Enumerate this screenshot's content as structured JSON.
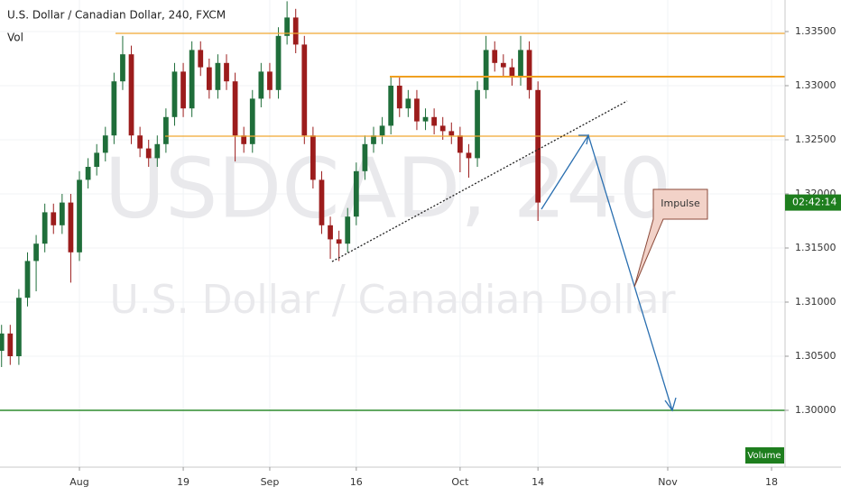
{
  "chart_data": {
    "type": "candlestick",
    "title": "U.S. Dollar / Canadian Dollar, 240, FXCM",
    "subtitle": "Vol",
    "watermark": "USDCAD, 240",
    "watermark_subtitle": "U.S. Dollar / Canadian Dollar",
    "annotation": "Impulse",
    "countdown": "02:42:14",
    "volume_button": "Volume",
    "up_color": "#1f6e3a",
    "down_color": "#9c1c1c",
    "xlim": [
      -0.18,
      90.56
    ],
    "xticks": [
      {
        "value": 9,
        "label": "Aug"
      },
      {
        "value": 21,
        "label": "19"
      },
      {
        "value": 31,
        "label": "Sep"
      },
      {
        "value": 41,
        "label": "16"
      },
      {
        "value": 53,
        "label": "Oct"
      },
      {
        "value": 62,
        "label": "14"
      },
      {
        "value": 77,
        "label": "Nov"
      },
      {
        "value": 89,
        "label": "18"
      }
    ],
    "ylim": [
      1.29475,
      1.337917
    ],
    "yticks": [
      {
        "value": 1.3,
        "label": "1.30000"
      },
      {
        "value": 1.305,
        "label": "1.30500"
      },
      {
        "value": 1.31,
        "label": "1.31000"
      },
      {
        "value": 1.315,
        "label": "1.31500"
      },
      {
        "value": 1.32,
        "label": "1.32000"
      },
      {
        "value": 1.325,
        "label": "1.32500"
      },
      {
        "value": 1.33,
        "label": "1.33000"
      },
      {
        "value": 1.335,
        "label": "1.33500"
      }
    ],
    "grid": true,
    "ohlc": [
      [
        1.3055,
        1.3079,
        1.304,
        1.3071
      ],
      [
        1.3071,
        1.3079,
        1.3042,
        1.305
      ],
      [
        1.305,
        1.3112,
        1.3042,
        1.3104
      ],
      [
        1.3104,
        1.3146,
        1.3096,
        1.3138
      ],
      [
        1.3138,
        1.3162,
        1.311,
        1.3154
      ],
      [
        1.3154,
        1.3191,
        1.3146,
        1.3183
      ],
      [
        1.3183,
        1.3191,
        1.3163,
        1.3171
      ],
      [
        1.3171,
        1.32,
        1.3163,
        1.3192
      ],
      [
        1.3192,
        1.32,
        1.3118,
        1.3146
      ],
      [
        1.3146,
        1.3221,
        1.3138,
        1.3213
      ],
      [
        1.3213,
        1.3233,
        1.3205,
        1.3225
      ],
      [
        1.3225,
        1.3246,
        1.3217,
        1.3238
      ],
      [
        1.3238,
        1.3262,
        1.323,
        1.3254
      ],
      [
        1.3254,
        1.3312,
        1.3246,
        1.3304
      ],
      [
        1.3304,
        1.3346,
        1.3296,
        1.3329
      ],
      [
        1.3329,
        1.3337,
        1.3246,
        1.3254
      ],
      [
        1.3254,
        1.3262,
        1.3234,
        1.3242
      ],
      [
        1.3242,
        1.325,
        1.3225,
        1.3233
      ],
      [
        1.3233,
        1.3254,
        1.3225,
        1.3246
      ],
      [
        1.3246,
        1.3279,
        1.3238,
        1.3271
      ],
      [
        1.3271,
        1.3321,
        1.3263,
        1.3313
      ],
      [
        1.3313,
        1.3321,
        1.3271,
        1.3279
      ],
      [
        1.3279,
        1.3341,
        1.3271,
        1.3333
      ],
      [
        1.3333,
        1.3341,
        1.3309,
        1.3317
      ],
      [
        1.3317,
        1.3325,
        1.3288,
        1.3296
      ],
      [
        1.3296,
        1.3329,
        1.3288,
        1.3321
      ],
      [
        1.3321,
        1.3329,
        1.3296,
        1.3304
      ],
      [
        1.3304,
        1.3312,
        1.323,
        1.3254
      ],
      [
        1.3254,
        1.3262,
        1.3238,
        1.3246
      ],
      [
        1.3246,
        1.3296,
        1.3238,
        1.3288
      ],
      [
        1.3288,
        1.3321,
        1.328,
        1.3313
      ],
      [
        1.3313,
        1.3321,
        1.3288,
        1.3296
      ],
      [
        1.3296,
        1.3354,
        1.3288,
        1.3346
      ],
      [
        1.3346,
        1.3378,
        1.3338,
        1.3363
      ],
      [
        1.3363,
        1.3371,
        1.333,
        1.3338
      ],
      [
        1.3338,
        1.3346,
        1.3246,
        1.3254
      ],
      [
        1.3254,
        1.3262,
        1.3205,
        1.3213
      ],
      [
        1.3213,
        1.3221,
        1.3163,
        1.3171
      ],
      [
        1.3171,
        1.3179,
        1.314,
        1.3158
      ],
      [
        1.3158,
        1.3166,
        1.3138,
        1.3154
      ],
      [
        1.3154,
        1.3187,
        1.3146,
        1.3179
      ],
      [
        1.3179,
        1.3229,
        1.3171,
        1.3221
      ],
      [
        1.3221,
        1.3254,
        1.3213,
        1.3246
      ],
      [
        1.3246,
        1.3262,
        1.3238,
        1.3254
      ],
      [
        1.3254,
        1.3271,
        1.3246,
        1.3263
      ],
      [
        1.3263,
        1.3308,
        1.3255,
        1.33
      ],
      [
        1.33,
        1.3308,
        1.3271,
        1.3279
      ],
      [
        1.3279,
        1.3296,
        1.3271,
        1.3288
      ],
      [
        1.3288,
        1.3296,
        1.3259,
        1.3267
      ],
      [
        1.3267,
        1.3279,
        1.3259,
        1.3271
      ],
      [
        1.3271,
        1.3279,
        1.3255,
        1.3263
      ],
      [
        1.3263,
        1.3271,
        1.325,
        1.3258
      ],
      [
        1.3258,
        1.3266,
        1.3246,
        1.3254
      ],
      [
        1.3254,
        1.3262,
        1.322,
        1.3238
      ],
      [
        1.3238,
        1.3246,
        1.3215,
        1.3233
      ],
      [
        1.3233,
        1.3304,
        1.3225,
        1.3296
      ],
      [
        1.3296,
        1.3346,
        1.3288,
        1.3333
      ],
      [
        1.3333,
        1.3341,
        1.3313,
        1.3321
      ],
      [
        1.3321,
        1.3329,
        1.3309,
        1.3317
      ],
      [
        1.3317,
        1.3325,
        1.33,
        1.3308
      ],
      [
        1.3308,
        1.3346,
        1.33,
        1.3333
      ],
      [
        1.3333,
        1.3341,
        1.3288,
        1.3296
      ],
      [
        1.3296,
        1.3304,
        1.3175,
        1.3192
      ]
    ]
  }
}
